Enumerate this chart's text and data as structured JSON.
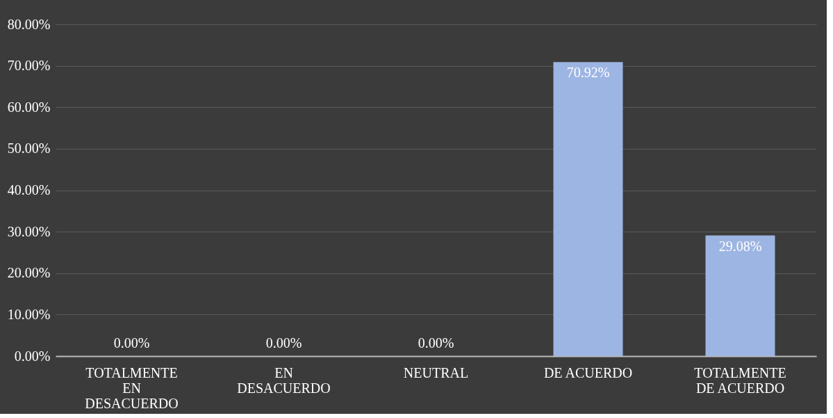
{
  "chart_data": {
    "type": "bar",
    "categories": [
      "TOTALMENTE EN DESACUERDO",
      "EN DESACUERDO",
      "NEUTRAL",
      "DE ACUERDO",
      "TOTALMENTE DE ACUERDO"
    ],
    "values": [
      0,
      0,
      0,
      70.92,
      29.08
    ],
    "value_labels": [
      "0.00%",
      "0.00%",
      "0.00%",
      "70.92%",
      "29.08%"
    ],
    "color": "#9db5e2",
    "ylim": [
      0,
      80
    ],
    "yticks": [
      {
        "value": 0,
        "label": "0.00%"
      },
      {
        "value": 10,
        "label": "10.00%"
      },
      {
        "value": 20,
        "label": "20.00%"
      },
      {
        "value": 30,
        "label": "30.00%"
      },
      {
        "value": 40,
        "label": "40.00%"
      },
      {
        "value": 50,
        "label": "50.00%"
      },
      {
        "value": 60,
        "label": "60.00%"
      },
      {
        "value": 70,
        "label": "70.00%"
      },
      {
        "value": 80,
        "label": "80.00%"
      }
    ],
    "grid": "y"
  }
}
